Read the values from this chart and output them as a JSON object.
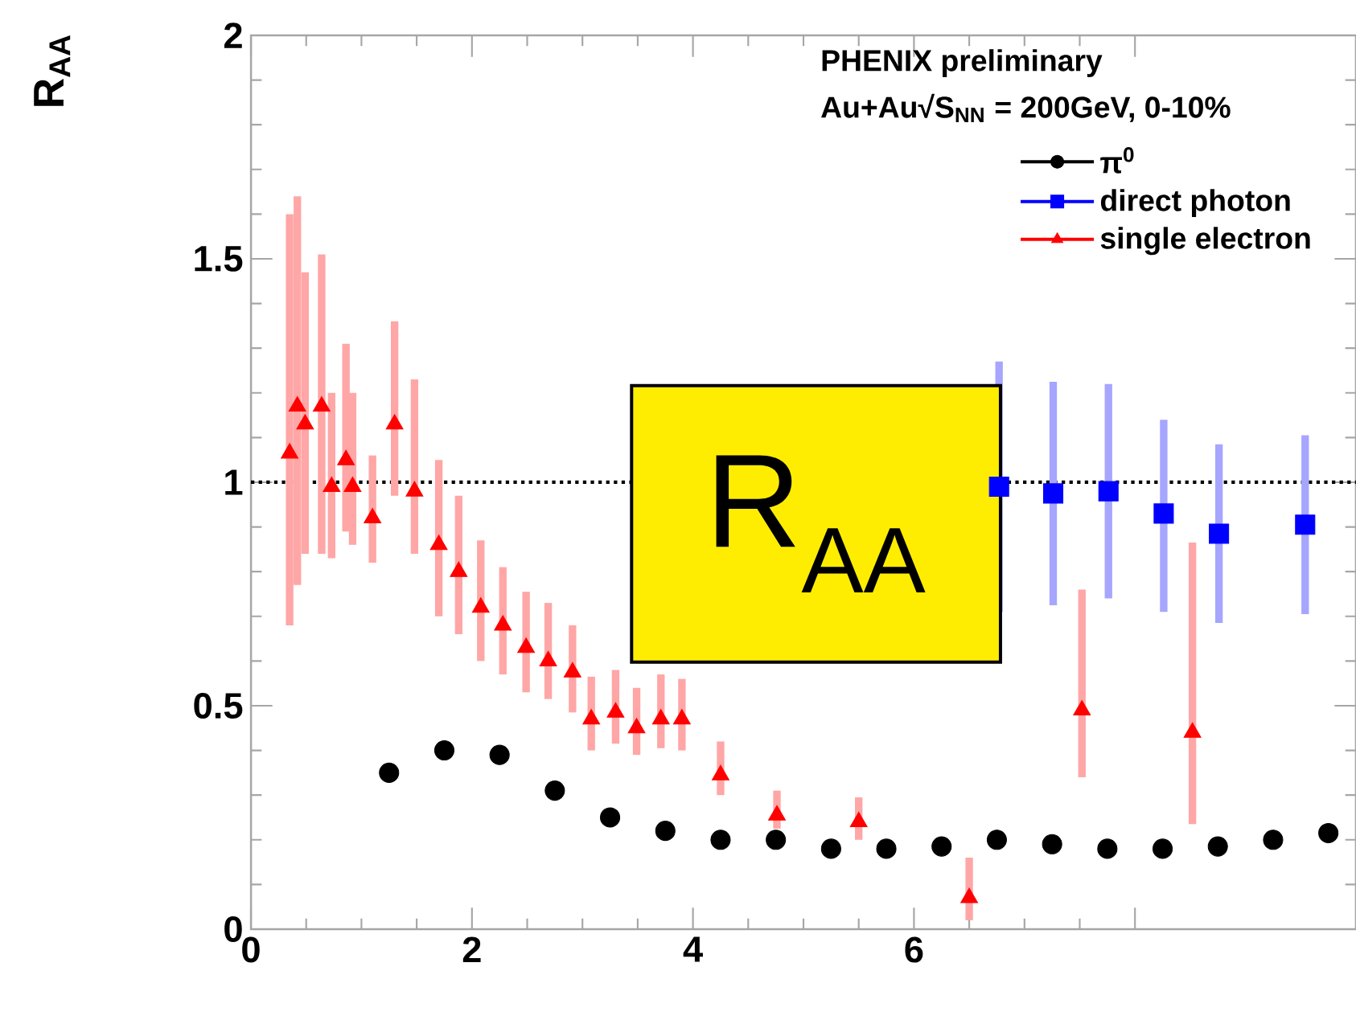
{
  "chart_data": {
    "type": "scatter",
    "ylabel": "R$_{AA}$",
    "xlim": [
      0,
      10
    ],
    "ylim": [
      0,
      2
    ],
    "xticks": [
      0,
      2,
      4,
      6,
      {
        "value": 8,
        "label": null
      }
    ],
    "yticks": [
      0,
      0.5,
      1,
      1.5,
      2
    ],
    "legend": "top right",
    "annotations": [
      "PHENIX preliminary",
      "Au+Au√S$_{NN}$ = 200GeV, 0-10%",
      "R$_{AA}$"
    ],
    "ref_lines": [
      {
        "axis": "y",
        "value": 1,
        "color": "#000000",
        "line_style": "dotted"
      }
    ],
    "series": [
      {
        "name": "π$^{0}$",
        "color": "#000000",
        "marker": "circle",
        "x": [
          1.25,
          1.75,
          2.25,
          2.75,
          3.25,
          3.75,
          4.25,
          4.75,
          5.25,
          5.75,
          6.25,
          6.75,
          7.25,
          7.75,
          8.25,
          8.75,
          9.25,
          9.75
        ],
        "values": [
          0.35,
          0.4,
          0.39,
          0.31,
          0.25,
          0.22,
          0.2,
          0.2,
          0.18,
          0.18,
          0.185,
          0.2,
          0.19,
          0.18,
          0.18,
          0.185,
          0.2,
          0.215
        ]
      },
      {
        "name": "direct photon",
        "color": "#0000ff",
        "marker": "square",
        "x": [
          6.77,
          7.26,
          7.76,
          8.26,
          8.76,
          9.54
        ],
        "values": [
          0.99,
          0.975,
          0.98,
          0.93,
          0.885,
          0.905
        ],
        "errors": [
          0.28,
          0.25,
          0.24,
          [
            0.71,
            1.14
          ],
          0.2,
          0.2
        ]
      },
      {
        "name": "single electron",
        "color": "#ff0000",
        "marker": "triangle",
        "x": [
          0.35,
          0.42,
          0.49,
          0.64,
          0.73,
          0.86,
          0.92,
          1.1,
          1.3,
          1.48,
          1.7,
          1.88,
          2.08,
          2.28,
          2.49,
          2.69,
          2.91,
          3.08,
          3.3,
          3.49,
          3.71,
          3.9,
          4.25,
          4.76,
          5.5,
          6.5,
          7.52,
          8.52
        ],
        "values": [
          1.065,
          1.17,
          1.13,
          1.17,
          0.99,
          1.05,
          0.99,
          0.92,
          1.13,
          0.98,
          0.86,
          0.8,
          0.72,
          0.68,
          0.63,
          0.6,
          0.575,
          0.47,
          0.485,
          0.45,
          0.47,
          0.47,
          0.345,
          0.255,
          0.24,
          0.07,
          0.49,
          0.44
        ],
        "errors": [
          [
            0.68,
            1.6
          ],
          [
            0.77,
            1.64
          ],
          [
            0.84,
            1.47
          ],
          [
            0.84,
            1.51
          ],
          [
            0.83,
            1.2
          ],
          [
            0.89,
            1.31
          ],
          [
            0.86,
            1.2
          ],
          [
            0.82,
            1.06
          ],
          [
            0.97,
            1.36
          ],
          [
            0.84,
            1.23
          ],
          [
            0.7,
            1.05
          ],
          [
            0.66,
            0.97
          ],
          [
            0.6,
            0.87
          ],
          [
            0.57,
            0.81
          ],
          [
            0.53,
            0.755
          ],
          [
            0.515,
            0.73
          ],
          [
            0.485,
            0.68
          ],
          [
            0.4,
            0.565
          ],
          [
            0.415,
            0.58
          ],
          [
            0.39,
            0.54
          ],
          [
            0.405,
            0.57
          ],
          [
            0.4,
            0.56
          ],
          [
            0.3,
            0.42
          ],
          [
            0.225,
            0.31
          ],
          [
            0.2,
            0.295
          ],
          [
            0.02,
            0.16
          ],
          [
            0.34,
            0.76
          ],
          [
            0.235,
            0.865
          ]
        ]
      }
    ]
  }
}
